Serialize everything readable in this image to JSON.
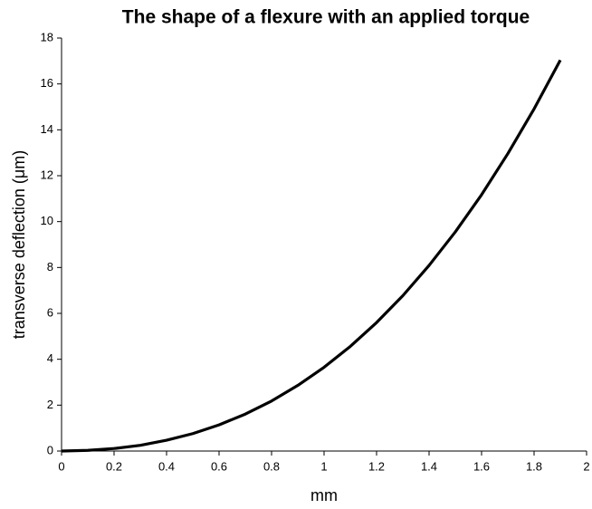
{
  "chart_data": {
    "type": "line",
    "title": "The shape of a flexure with an applied torque",
    "xlabel": "mm",
    "ylabel": "transverse deflection (μm)",
    "x": [
      0,
      0.1,
      0.2,
      0.3,
      0.4,
      0.5,
      0.6,
      0.7,
      0.8,
      0.9,
      1.0,
      1.1,
      1.2,
      1.3,
      1.4,
      1.5,
      1.6,
      1.7,
      1.8,
      1.9
    ],
    "series": [
      {
        "name": "deflection",
        "color": "#000000",
        "values": [
          0,
          0.03,
          0.11,
          0.25,
          0.47,
          0.76,
          1.14,
          1.61,
          2.18,
          2.86,
          3.65,
          4.56,
          5.6,
          6.77,
          8.09,
          9.55,
          11.17,
          12.96,
          14.91,
          17.04
        ]
      }
    ],
    "xlim": [
      0,
      2
    ],
    "xticks": [
      0,
      0.2,
      0.4,
      0.6,
      0.8,
      1,
      1.2,
      1.4,
      1.6,
      1.8,
      2
    ],
    "ylim": [
      0,
      18
    ],
    "yticks": [
      0,
      2,
      4,
      6,
      8,
      10,
      12,
      14,
      16,
      18
    ],
    "grid": false,
    "legend": false
  }
}
